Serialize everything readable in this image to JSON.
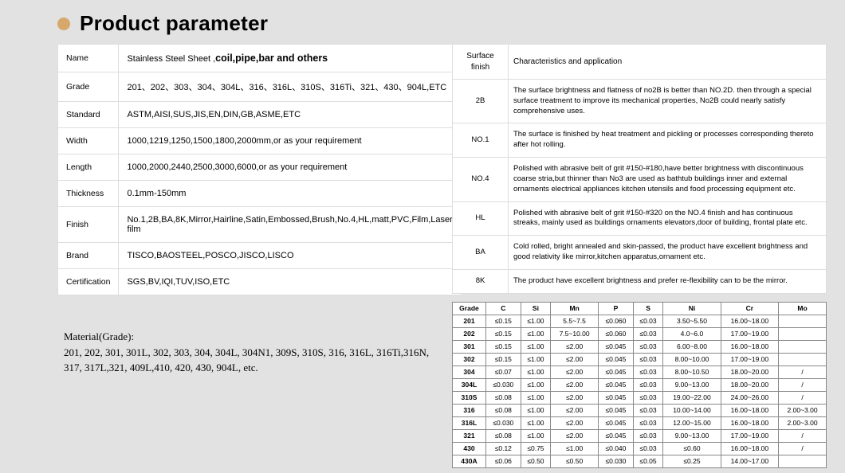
{
  "header": {
    "title": "Product parameter"
  },
  "params": {
    "rows": [
      {
        "key": "Name",
        "val": "Stainless Steel Sheet ,coil,pipe,bar and others",
        "isName": true
      },
      {
        "key": "Grade",
        "val": "201、202、303、304、304L、316、316L、310S、316Ti、321、430、904L,ETC"
      },
      {
        "key": "Standard",
        "val": "ASTM,AISI,SUS,JIS,EN,DIN,GB,ASME,ETC"
      },
      {
        "key": "Width",
        "val": "1000,1219,1250,1500,1800,2000mm,or as your requirement"
      },
      {
        "key": "Length",
        "val": "1000,2000,2440,2500,3000,6000,or as your requirement"
      },
      {
        "key": "Thickness",
        "val": "0.1mm-150mm"
      },
      {
        "key": "Finish",
        "val": "No.1,2B,BA,8K,Mirror,Hairline,Satin,Embossed,Brush,No.4,HL,matt,PVC,Film,Laser film"
      },
      {
        "key": "Brand",
        "val": "TISCO,BAOSTEEL,POSCO,JISCO,LISCO"
      },
      {
        "key": "Certification",
        "val": "SGS,BV,IQI,TUV,ISO,ETC"
      }
    ]
  },
  "surface": {
    "header": {
      "col1": "Surface finish",
      "col2": "Characteristics and application"
    },
    "rows": [
      {
        "key": "2B",
        "val": "The surface brightness and flatness of no2B is better than NO.2D. then through a special surface treatment to improve its mechanical properties, No2B could nearly satisfy comprehensive uses."
      },
      {
        "key": "NO.1",
        "val": "The surface is finished by heat treatment and pickling or processes corresponding thereto after hot rolling."
      },
      {
        "key": "NO.4",
        "val": "Polished with abrasive belt of grit #150-#180,have better brightness with discontinuous coarse stria,but thinner than No3 are used as bathtub buildings inner and external ornaments electrical appliances kitchen utensils and food processing equipment etc."
      },
      {
        "key": "HL",
        "val": "Polished with abrasive belt of grit #150-#320 on the NO.4 finish and has continuous streaks, mainly used as buildings ornaments elevators,door of building, frontal plate etc."
      },
      {
        "key": "BA",
        "val": "Cold rolled, bright annealed and skin-passed, the product have excellent brightness and good relativity like mirror,kitchen apparatus,ornament etc."
      },
      {
        "key": "8K",
        "val": "The product have excellent brightness and prefer re-flexibility can to be the mirror."
      }
    ]
  },
  "material": {
    "title": "Material(Grade):",
    "text": "201, 202, 301, 301L, 302, 303, 304, 304L, 304N1, 309S, 310S, 316, 316L, 316Ti,316N, 317, 317L,321, 409L,410, 420, 430, 904L, etc."
  },
  "chem": {
    "columns": [
      "Grade",
      "C",
      "Si",
      "Mn",
      "P",
      "S",
      "Ni",
      "Cr",
      "Mo"
    ],
    "rows": [
      [
        "201",
        "≤0.15",
        "≤1.00",
        "5.5~7.5",
        "≤0.060",
        "≤0.03",
        "3.50~5.50",
        "16.00~18.00",
        ""
      ],
      [
        "202",
        "≤0.15",
        "≤1.00",
        "7.5~10.00",
        "≤0.060",
        "≤0.03",
        "4.0~6.0",
        "17.00~19.00",
        ""
      ],
      [
        "301",
        "≤0.15",
        "≤1.00",
        "≤2.00",
        "≤0.045",
        "≤0.03",
        "6.00~8.00",
        "16.00~18.00",
        ""
      ],
      [
        "302",
        "≤0.15",
        "≤1.00",
        "≤2.00",
        "≤0.045",
        "≤0.03",
        "8.00~10.00",
        "17.00~19.00",
        ""
      ],
      [
        "304",
        "≤0.07",
        "≤1.00",
        "≤2.00",
        "≤0.045",
        "≤0.03",
        "8.00~10.50",
        "18.00~20.00",
        "/"
      ],
      [
        "304L",
        "≤0.030",
        "≤1.00",
        "≤2.00",
        "≤0.045",
        "≤0.03",
        "9.00~13.00",
        "18.00~20.00",
        "/"
      ],
      [
        "310S",
        "≤0.08",
        "≤1.00",
        "≤2.00",
        "≤0.045",
        "≤0.03",
        "19.00~22.00",
        "24.00~26.00",
        "/"
      ],
      [
        "316",
        "≤0.08",
        "≤1.00",
        "≤2.00",
        "≤0.045",
        "≤0.03",
        "10.00~14.00",
        "16.00~18.00",
        "2.00~3.00"
      ],
      [
        "316L",
        "≤0.030",
        "≤1.00",
        "≤2.00",
        "≤0.045",
        "≤0.03",
        "12.00~15.00",
        "16.00~18.00",
        "2.00~3.00"
      ],
      [
        "321",
        "≤0.08",
        "≤1.00",
        "≤2.00",
        "≤0.045",
        "≤0.03",
        "9.00~13.00",
        "17.00~19.00",
        "/"
      ],
      [
        "430",
        "≤0.12",
        "≤0.75",
        "≤1.00",
        "≤0.040",
        "≤0.03",
        "≤0.60",
        "16.00~18.00",
        "/"
      ],
      [
        "430A",
        "≤0.06",
        "≤0.50",
        "≤0.50",
        "≤0.030",
        "≤0.05",
        "≤0.25",
        "14.00~17.00",
        ""
      ]
    ]
  }
}
